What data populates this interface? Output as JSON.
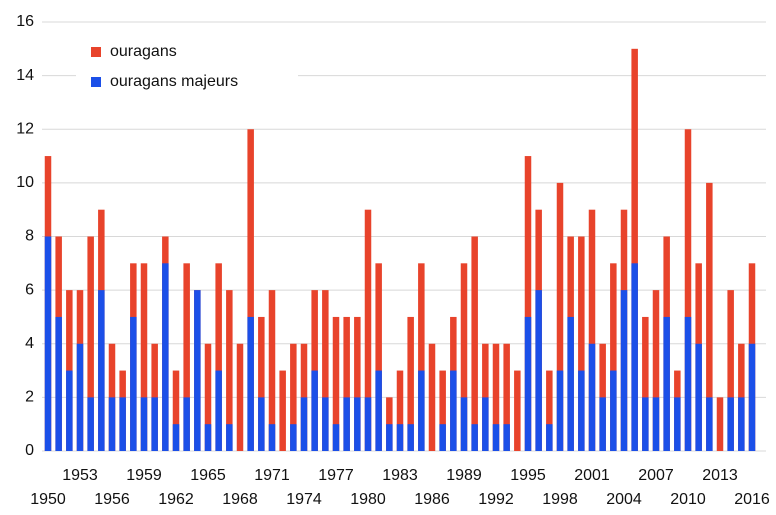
{
  "chart_data": {
    "type": "bar",
    "categories": [
      "1950",
      null,
      null,
      "1953",
      null,
      null,
      "1956",
      null,
      null,
      "1959",
      null,
      null,
      "1962",
      null,
      null,
      "1965",
      null,
      null,
      "1968",
      null,
      null,
      "1971",
      null,
      null,
      "1974",
      null,
      null,
      "1977",
      null,
      null,
      "1980",
      null,
      null,
      "1983",
      null,
      null,
      "1986",
      null,
      null,
      "1989",
      null,
      null,
      "1992",
      null,
      null,
      "1995",
      null,
      null,
      "1998",
      null,
      null,
      "2001",
      null,
      null,
      "2004",
      null,
      null,
      "2007",
      null,
      null,
      "2010",
      null,
      null,
      "2013",
      null,
      null,
      "2016"
    ],
    "series": [
      {
        "name": "ouragans",
        "color": "#e8432b",
        "values": [
          11,
          8,
          6,
          6,
          8,
          9,
          4,
          3,
          7,
          7,
          4,
          8,
          3,
          7,
          6,
          4,
          7,
          6,
          4,
          12,
          5,
          6,
          3,
          4,
          4,
          6,
          6,
          5,
          5,
          5,
          9,
          7,
          2,
          3,
          5,
          7,
          4,
          3,
          5,
          7,
          8,
          4,
          4,
          4,
          3,
          11,
          9,
          3,
          10,
          8,
          8,
          9,
          4,
          7,
          9,
          15,
          5,
          6,
          8,
          3,
          12,
          7,
          10,
          2,
          6,
          4,
          7
        ]
      },
      {
        "name": "ouragans majeurs",
        "color": "#1b4fe8",
        "values": [
          8,
          5,
          3,
          4,
          2,
          6,
          2,
          2,
          5,
          2,
          2,
          7,
          1,
          2,
          6,
          1,
          3,
          1,
          0,
          5,
          2,
          1,
          0,
          1,
          2,
          3,
          2,
          1,
          2,
          2,
          2,
          3,
          1,
          1,
          1,
          3,
          0,
          1,
          3,
          2,
          1,
          2,
          1,
          1,
          0,
          5,
          6,
          1,
          3,
          5,
          3,
          4,
          2,
          3,
          6,
          7,
          2,
          2,
          5,
          2,
          5,
          4,
          2,
          0,
          2,
          2,
          4
        ]
      }
    ],
    "ylim": [
      0,
      16
    ],
    "yticks": [
      0,
      2,
      4,
      6,
      8,
      10,
      12,
      14,
      16
    ],
    "grid": true,
    "legend": "upper-left"
  }
}
